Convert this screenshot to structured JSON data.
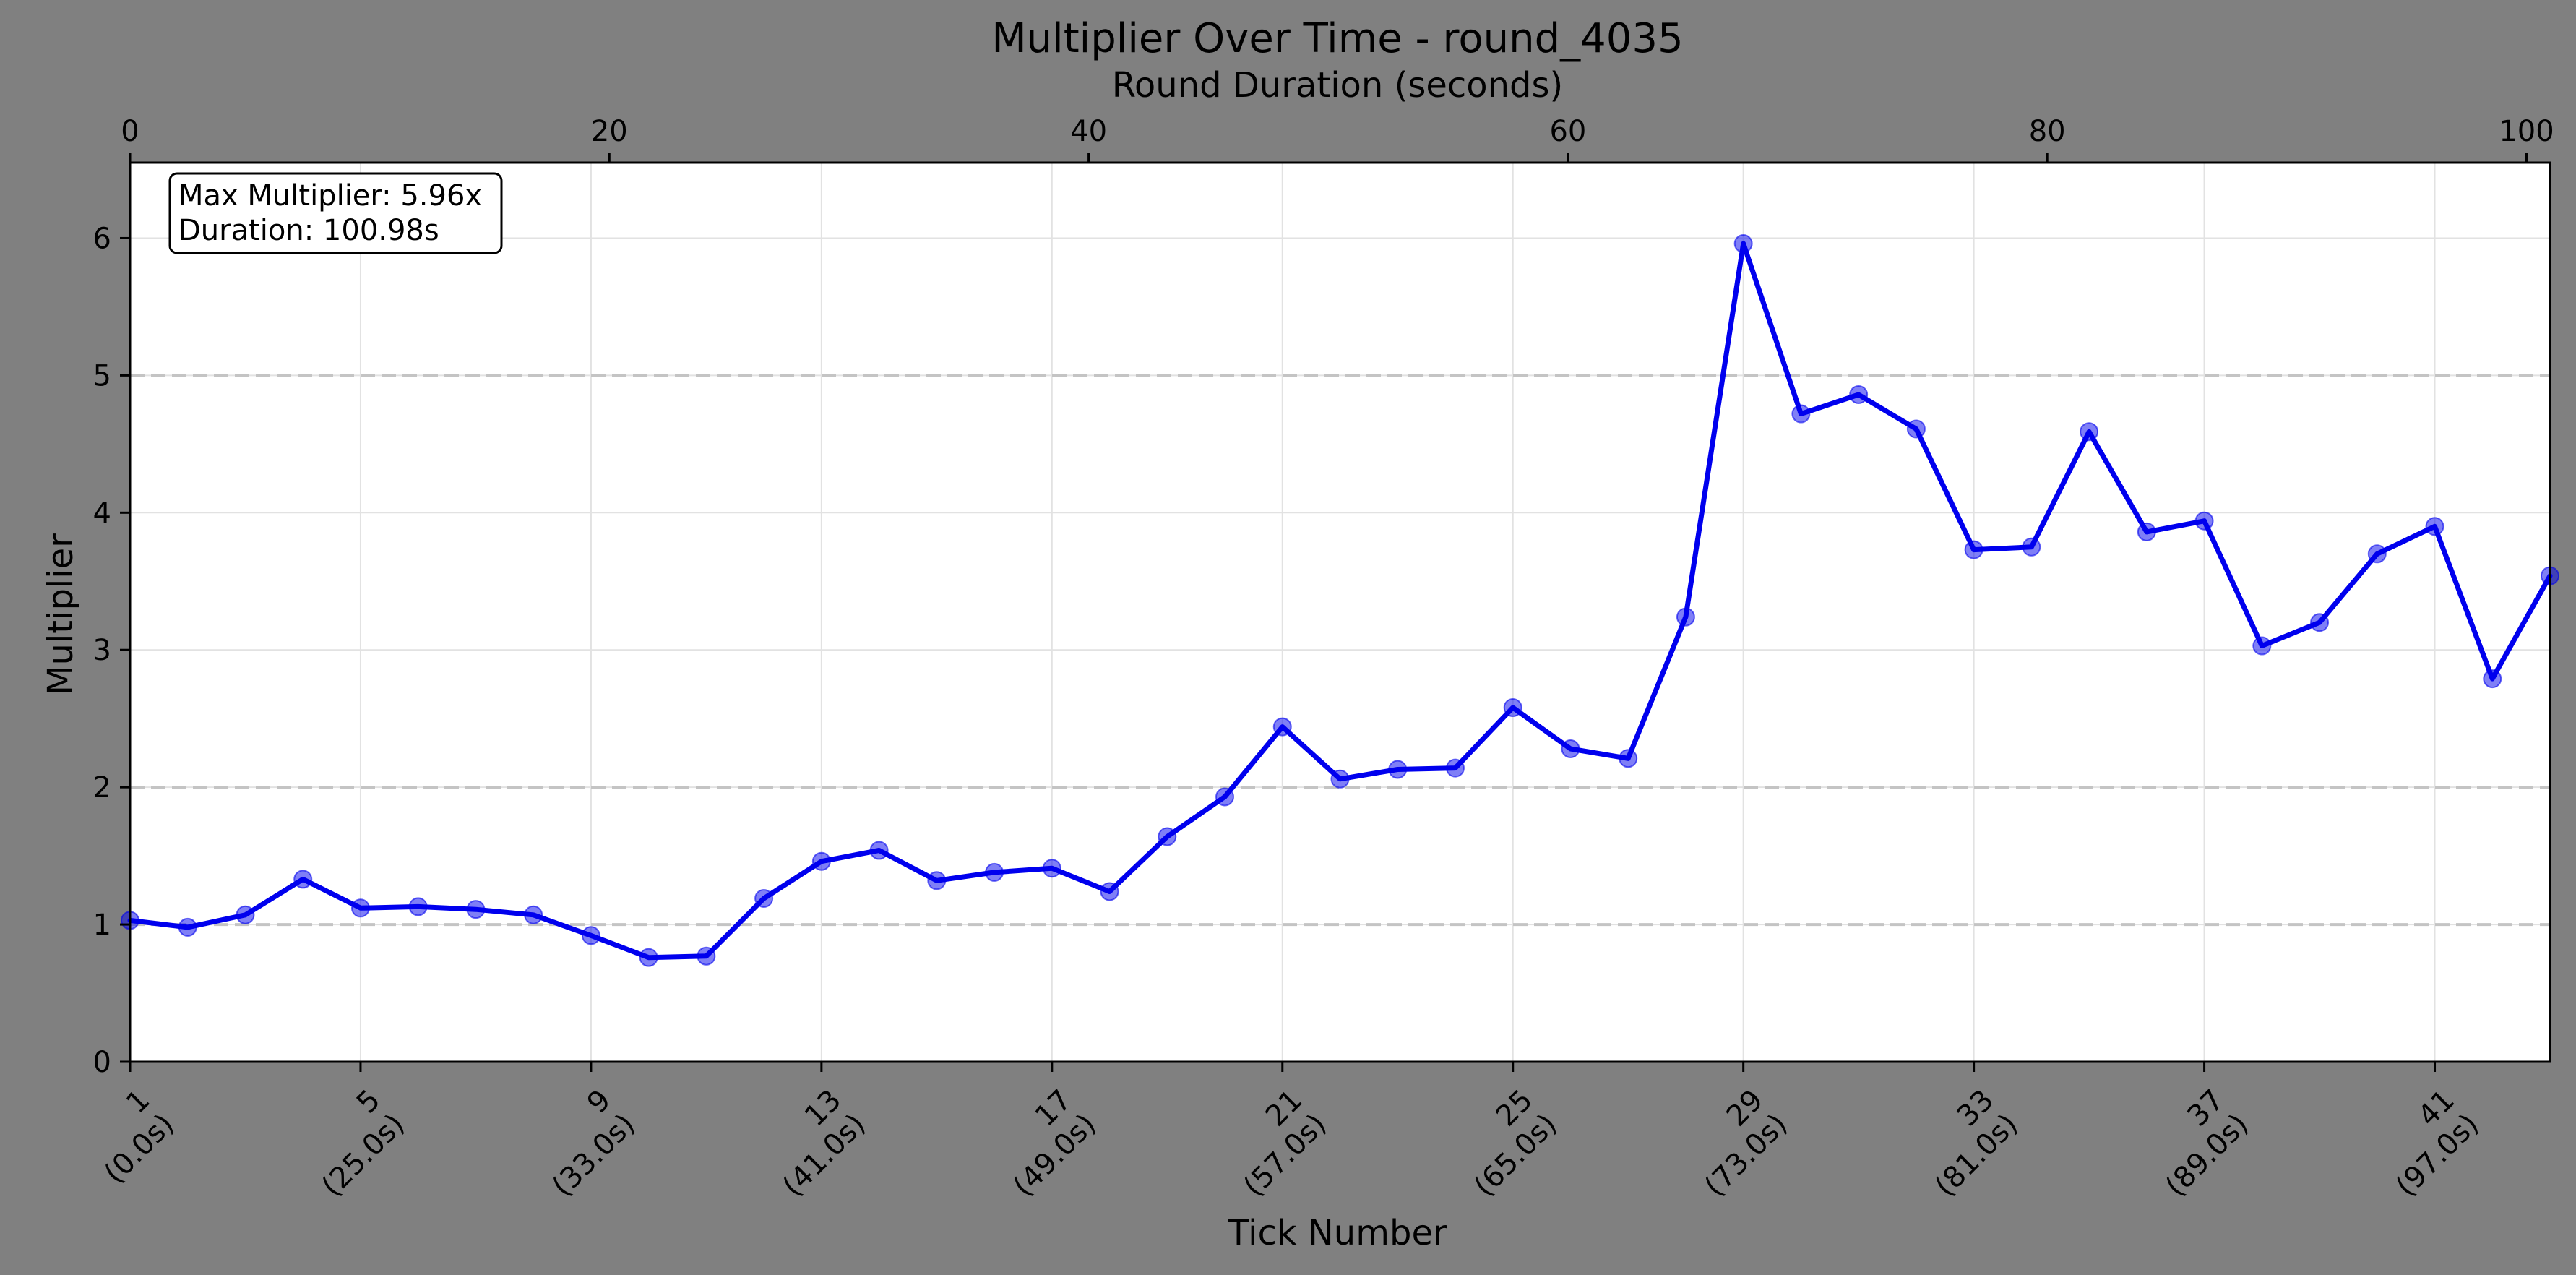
{
  "chart_data": {
    "type": "line",
    "title": "Multiplier Over Time - round_4035",
    "xlabel": "Tick Number",
    "ylabel": "Multiplier",
    "top_xlabel": "Round Duration (seconds)",
    "xlim": [
      1,
      43
    ],
    "ylim": [
      0,
      6.55
    ],
    "top_xlim": [
      0,
      100.98
    ],
    "yticks": [
      0,
      1,
      2,
      3,
      4,
      5,
      6
    ],
    "top_xticks": [
      0,
      20,
      40,
      60,
      80,
      100
    ],
    "xticks": [
      {
        "tick": 1,
        "line1": "1",
        "line2": "(0.0s)"
      },
      {
        "tick": 5,
        "line1": "5",
        "line2": "(25.0s)"
      },
      {
        "tick": 9,
        "line1": "9",
        "line2": "(33.0s)"
      },
      {
        "tick": 13,
        "line1": "13",
        "line2": "(41.0s)"
      },
      {
        "tick": 17,
        "line1": "17",
        "line2": "(49.0s)"
      },
      {
        "tick": 21,
        "line1": "21",
        "line2": "(57.0s)"
      },
      {
        "tick": 25,
        "line1": "25",
        "line2": "(65.0s)"
      },
      {
        "tick": 29,
        "line1": "29",
        "line2": "(73.0s)"
      },
      {
        "tick": 33,
        "line1": "33",
        "line2": "(81.0s)"
      },
      {
        "tick": 37,
        "line1": "37",
        "line2": "(89.0s)"
      },
      {
        "tick": 41,
        "line1": "41",
        "line2": "(97.0s)"
      }
    ],
    "reference_lines": [
      1,
      2,
      5
    ],
    "grid": true,
    "series": [
      {
        "color": "#0000ee",
        "x": [
          1,
          2,
          3,
          4,
          5,
          6,
          7,
          8,
          9,
          10,
          11,
          12,
          13,
          14,
          15,
          16,
          17,
          18,
          19,
          20,
          21,
          22,
          23,
          24,
          25,
          26,
          27,
          28,
          29,
          30,
          31,
          32,
          33,
          34,
          35,
          36,
          37,
          38,
          39,
          40,
          41,
          42,
          43
        ],
        "values": [
          1.03,
          0.98,
          1.07,
          1.33,
          1.12,
          1.13,
          1.11,
          1.07,
          0.92,
          0.76,
          0.77,
          1.19,
          1.46,
          1.54,
          1.32,
          1.38,
          1.41,
          1.24,
          1.64,
          1.93,
          2.44,
          2.06,
          2.13,
          2.14,
          2.58,
          2.28,
          2.21,
          3.24,
          5.96,
          4.72,
          4.86,
          4.61,
          3.73,
          3.75,
          4.59,
          3.86,
          3.94,
          3.03,
          3.2,
          3.7,
          3.9,
          2.79,
          3.54
        ]
      }
    ],
    "annotation": {
      "line1": "Max Multiplier: 5.96x",
      "line2": "Duration: 100.98s"
    }
  }
}
